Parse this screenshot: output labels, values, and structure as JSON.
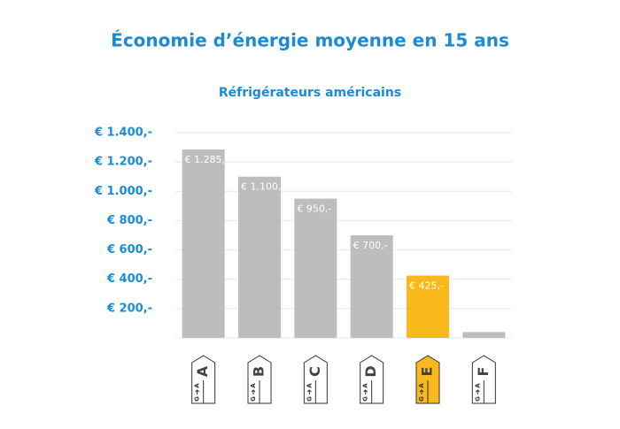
{
  "chart_data": {
    "type": "bar",
    "title": "Économie d’énergie moyenne en 15 ans",
    "subtitle": "Réfrigérateurs américains",
    "categories": [
      "A",
      "B",
      "C",
      "D",
      "E",
      "F"
    ],
    "values": [
      1285,
      1100,
      950,
      700,
      425,
      40
    ],
    "value_labels": [
      "€ 1.285,-",
      "€ 1.100,-",
      "€ 950,-",
      "€ 700,-",
      "€ 425,-",
      null
    ],
    "colors": [
      "#bdbdbd",
      "#bdbdbd",
      "#bdbdbd",
      "#bdbdbd",
      "#f9b91c",
      "#bdbdbd"
    ],
    "scale_ends": [
      "A",
      "G"
    ],
    "ylim": [
      0,
      1400
    ],
    "yticks": [
      {
        "value": 200,
        "label": "€ 200,-"
      },
      {
        "value": 400,
        "label": "€ 400,-"
      },
      {
        "value": 600,
        "label": "€ 600,-"
      },
      {
        "value": 800,
        "label": "€ 800,-"
      },
      {
        "value": 1000,
        "label": "€ 1.000,-"
      },
      {
        "value": 1200,
        "label": "€ 1.200,-"
      },
      {
        "value": 1400,
        "label": "€ 1.400,-"
      }
    ],
    "grid": true
  }
}
